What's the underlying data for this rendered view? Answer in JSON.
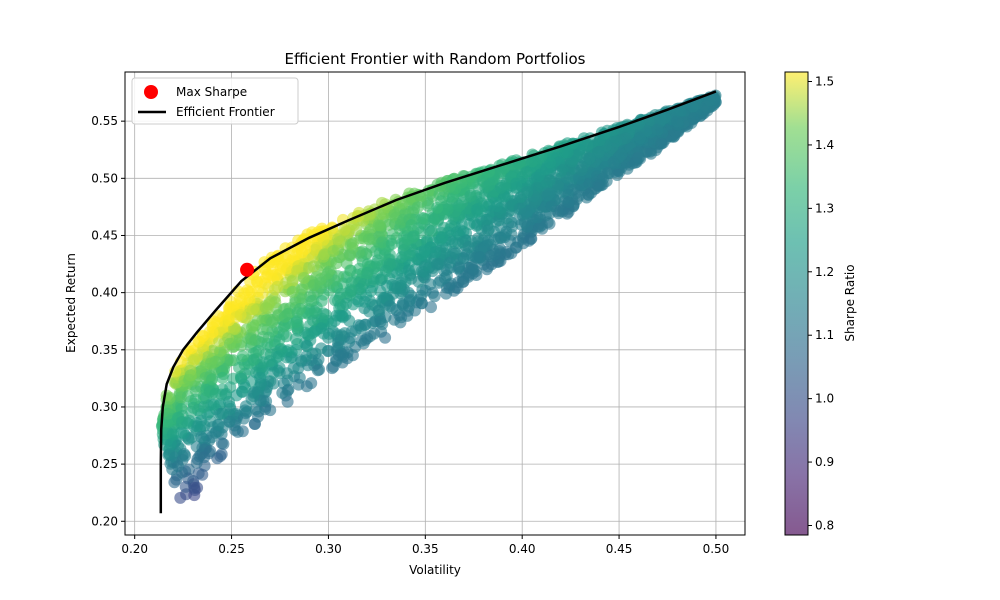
{
  "chart_data": {
    "type": "scatter",
    "title": "Efficient Frontier with Random Portfolios",
    "xlabel": "Volatility",
    "ylabel": "Expected Return",
    "xlim": [
      0.195,
      0.515
    ],
    "ylim": [
      0.188,
      0.593
    ],
    "xticks": [
      0.2,
      0.25,
      0.3,
      0.35,
      0.4,
      0.45,
      0.5
    ],
    "xtick_labels": [
      "0.20",
      "0.25",
      "0.30",
      "0.35",
      "0.40",
      "0.45",
      "0.50"
    ],
    "yticks": [
      0.2,
      0.25,
      0.3,
      0.35,
      0.4,
      0.45,
      0.5,
      0.55
    ],
    "ytick_labels": [
      "0.20",
      "0.25",
      "0.30",
      "0.35",
      "0.40",
      "0.45",
      "0.50",
      "0.55"
    ],
    "grid": true,
    "legend_position": "upper-left",
    "colorbar": {
      "label": "Sharpe Ratio",
      "range": [
        0.785,
        1.515
      ],
      "ticks": [
        0.8,
        0.9,
        1.0,
        1.1,
        1.2,
        1.3,
        1.4,
        1.5
      ],
      "tick_labels": [
        "0.8",
        "0.9",
        "1.0",
        "1.1",
        "1.2",
        "1.3",
        "1.4",
        "1.5"
      ],
      "colormap": "viridis"
    },
    "random_portfolios": {
      "description_region": {
        "upper_boundary": [
          [
            0.226,
            0.208
          ],
          [
            0.219,
            0.24
          ],
          [
            0.216,
            0.26
          ],
          [
            0.214,
            0.275
          ],
          [
            0.214,
            0.29
          ],
          [
            0.216,
            0.31
          ],
          [
            0.22,
            0.33
          ],
          [
            0.228,
            0.35
          ],
          [
            0.24,
            0.375
          ],
          [
            0.255,
            0.405
          ],
          [
            0.265,
            0.425
          ],
          [
            0.285,
            0.448
          ],
          [
            0.31,
            0.468
          ],
          [
            0.35,
            0.492
          ],
          [
            0.4,
            0.518
          ],
          [
            0.45,
            0.545
          ],
          [
            0.5,
            0.573
          ]
        ],
        "lower_boundary": [
          [
            0.226,
            0.208
          ],
          [
            0.232,
            0.225
          ],
          [
            0.24,
            0.25
          ],
          [
            0.26,
            0.28
          ],
          [
            0.28,
            0.305
          ],
          [
            0.3,
            0.33
          ],
          [
            0.33,
            0.36
          ],
          [
            0.36,
            0.395
          ],
          [
            0.4,
            0.44
          ],
          [
            0.44,
            0.49
          ],
          [
            0.47,
            0.525
          ],
          [
            0.5,
            0.565
          ]
        ]
      }
    },
    "series": [
      {
        "name": "Efficient Frontier",
        "type": "line",
        "color": "#000000",
        "x": [
          0.2135,
          0.2135,
          0.2137,
          0.2145,
          0.2165,
          0.22,
          0.225,
          0.232,
          0.242,
          0.255,
          0.27,
          0.29,
          0.31,
          0.335,
          0.36,
          0.39,
          0.42,
          0.45,
          0.475,
          0.5
        ],
        "y": [
          0.207,
          0.25,
          0.28,
          0.3,
          0.32,
          0.335,
          0.35,
          0.365,
          0.385,
          0.41,
          0.43,
          0.448,
          0.463,
          0.481,
          0.496,
          0.512,
          0.528,
          0.545,
          0.56,
          0.576
        ]
      },
      {
        "name": "Max Sharpe",
        "type": "point",
        "color": "#ff0000",
        "x": [
          0.258
        ],
        "y": [
          0.42
        ]
      }
    ]
  }
}
